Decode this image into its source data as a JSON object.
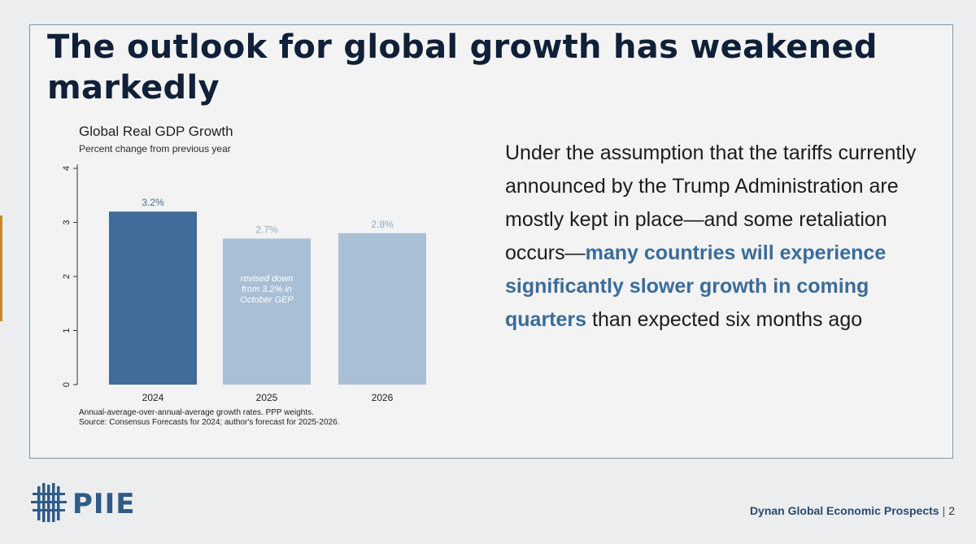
{
  "slide": {
    "title": "The outlook for global growth has weakened markedly",
    "body_parts": [
      {
        "text": "Under the assumption that the tariffs currently announced by the Trump Administration are mostly kept in place—and some retaliation occurs—",
        "style": "normal"
      },
      {
        "text": "many countries will experience significantly slower growth in coming quarters",
        "style": "highlight"
      },
      {
        "text": " than expected six months ago",
        "style": "normal"
      }
    ]
  },
  "chart_data": {
    "type": "bar",
    "title": "Global Real GDP Growth",
    "subtitle": "Percent change from previous year",
    "categories": [
      "2024",
      "2025",
      "2026"
    ],
    "values": [
      3.2,
      2.7,
      2.8
    ],
    "data_labels": [
      "3.2%",
      "2.7%",
      "2.8%"
    ],
    "bar_colors": [
      "#3f6c98",
      "#a9bfd6",
      "#a9bfd6"
    ],
    "label_colors": [
      "#3f6c98",
      "#8fa9c3",
      "#8fa9c3"
    ],
    "yticks": [
      0,
      1,
      2,
      3,
      4
    ],
    "ylim": [
      0,
      4
    ],
    "annotation": {
      "category": "2025",
      "lines": [
        "revised down",
        "from 3.2% in",
        "October GEP"
      ]
    },
    "footnotes": [
      "Annual-average-over-annual-average growth rates. PPP weights.",
      "Source: Consensus Forecasts for 2024; author's forecast for 2025-2026."
    ],
    "grid": false
  },
  "footer": {
    "logo_text": "PIIE",
    "label": "Dynan Global Economic Prospects",
    "separator": "|",
    "page": "2"
  },
  "colors": {
    "title": "#0f2038",
    "highlight": "#3a6c9a",
    "logo": "#2e5b88"
  }
}
